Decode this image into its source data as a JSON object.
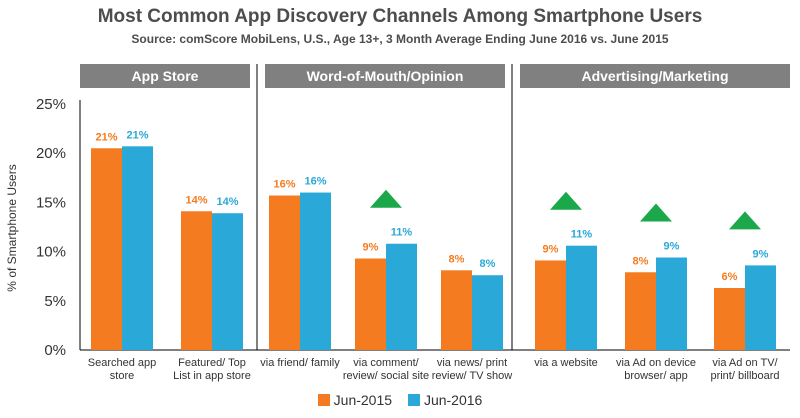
{
  "chart_data": {
    "type": "bar",
    "title": "Most Common App Discovery Channels Among Smartphone Users",
    "subtitle": "Source: comScore MobiLens, U.S., Age 13+, 3 Month Average Ending June 2016 vs. June 2015",
    "ylabel": "% of Smartphone Users",
    "ylim": [
      0,
      25
    ],
    "yticks": [
      "0%",
      "5%",
      "10%",
      "15%",
      "20%",
      "25%"
    ],
    "groups": [
      {
        "label": "App Store",
        "categories": [
          0,
          1
        ]
      },
      {
        "label": "Word-of-Mouth/Opinion",
        "categories": [
          2,
          3,
          4
        ]
      },
      {
        "label": "Advertising/Marketing",
        "categories": [
          5,
          6,
          7
        ]
      }
    ],
    "categories": [
      [
        "Searched app",
        "store"
      ],
      [
        "Featured/ Top",
        "List in app store"
      ],
      [
        "via friend/ family"
      ],
      [
        "via comment/",
        "review/ social site"
      ],
      [
        "via news/ print",
        "review/ TV show"
      ],
      [
        "via a website"
      ],
      [
        "via Ad on device",
        "browser/ app"
      ],
      [
        "via Ad on TV/",
        "print/ billboard"
      ]
    ],
    "increase_markers": [
      false,
      false,
      false,
      true,
      false,
      true,
      true,
      true
    ],
    "series": [
      {
        "name": "Jun-2015",
        "color": "#f47b20",
        "values": [
          20.5,
          14.1,
          15.7,
          9.3,
          8.1,
          9.1,
          7.9,
          6.3
        ],
        "labels": [
          "21%",
          "14%",
          "16%",
          "9%",
          "8%",
          "9%",
          "8%",
          "6%"
        ]
      },
      {
        "name": "Jun-2016",
        "color": "#2aa8d8",
        "values": [
          20.7,
          13.9,
          16.0,
          10.8,
          7.6,
          10.6,
          9.4,
          8.6
        ],
        "labels": [
          "21%",
          "14%",
          "16%",
          "11%",
          "8%",
          "11%",
          "9%",
          "9%"
        ]
      }
    ]
  },
  "colors": {
    "header_bg": "#808080",
    "marker": "#1aa84a",
    "axis": "#000000"
  }
}
